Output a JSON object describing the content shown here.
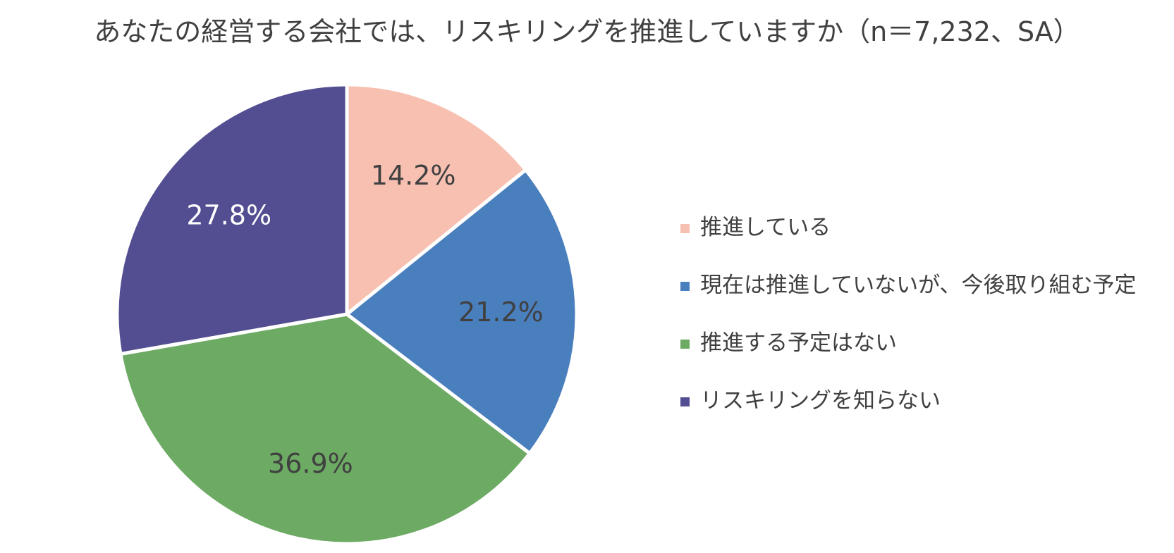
{
  "chart_data": {
    "type": "pie",
    "title": "あなたの経営する会社では、リスキリングを推進していますか（n＝7,232、SA）",
    "slices": [
      {
        "label": "推進している",
        "value": 14.2,
        "display": "14.2%",
        "color": "#F7C0B1",
        "label_color": "#404040"
      },
      {
        "label": "現在は推進していないが、今後取り組む予定",
        "value": 21.2,
        "display": "21.2%",
        "color": "#4A7FBE",
        "label_color": "#404040"
      },
      {
        "label": "推進する予定はない",
        "value": 36.9,
        "display": "36.9%",
        "color": "#6DAA64",
        "label_color": "#404040"
      },
      {
        "label": "リスキリングを知らない",
        "value": 27.8,
        "display": "27.8%",
        "color": "#524E91",
        "label_color": "#ffffff"
      }
    ],
    "legend_position": "right",
    "start_angle": "12 o'clock",
    "direction": "clockwise"
  }
}
